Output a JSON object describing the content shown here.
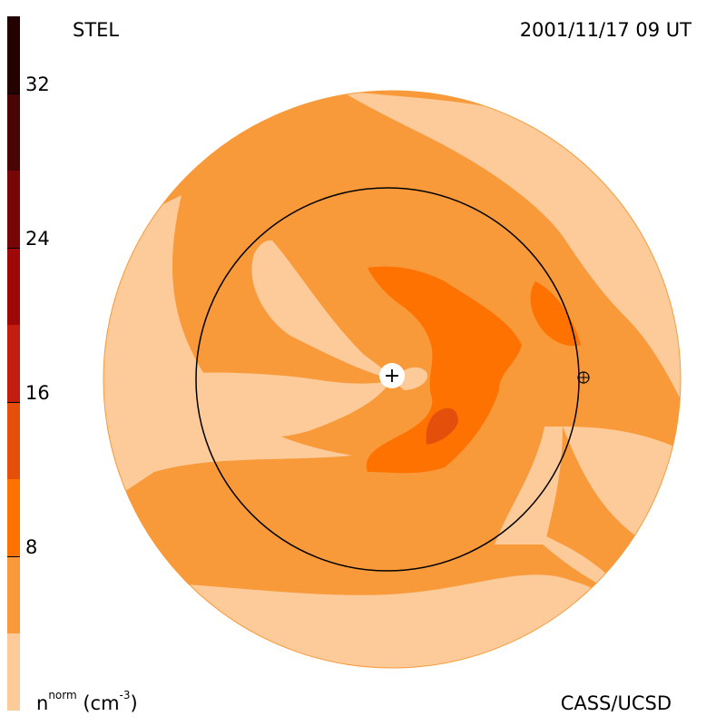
{
  "header": {
    "source": "STEL",
    "datetime": "2001/11/17 09 UT"
  },
  "footer": {
    "quantity": "n",
    "quantity_sup": "norm",
    "unit_open": " (cm",
    "unit_sup": "-3",
    "unit_close": ")",
    "credit": "CASS/UCSD"
  },
  "colorbar": {
    "min": 0,
    "max": 36,
    "ticks": [
      "32",
      "24",
      "16",
      "8"
    ],
    "tick_values": [
      32,
      24,
      16,
      8
    ],
    "levels": [
      {
        "from": 0,
        "to": 4,
        "color": "#fdcb9a"
      },
      {
        "from": 4,
        "to": 8,
        "color": "#f99a3a"
      },
      {
        "from": 8,
        "to": 12,
        "color": "#fe7202"
      },
      {
        "from": 12,
        "to": 16,
        "color": "#e44f0c"
      },
      {
        "from": 16,
        "to": 20,
        "color": "#c21d0e"
      },
      {
        "from": 20,
        "to": 24,
        "color": "#9f0808"
      },
      {
        "from": 24,
        "to": 28,
        "color": "#770707"
      },
      {
        "from": 28,
        "to": 32,
        "color": "#4b0404"
      },
      {
        "from": 32,
        "to": 36,
        "color": "#240202"
      }
    ]
  },
  "markers": {
    "sun": "+",
    "earth": "⊕"
  }
}
